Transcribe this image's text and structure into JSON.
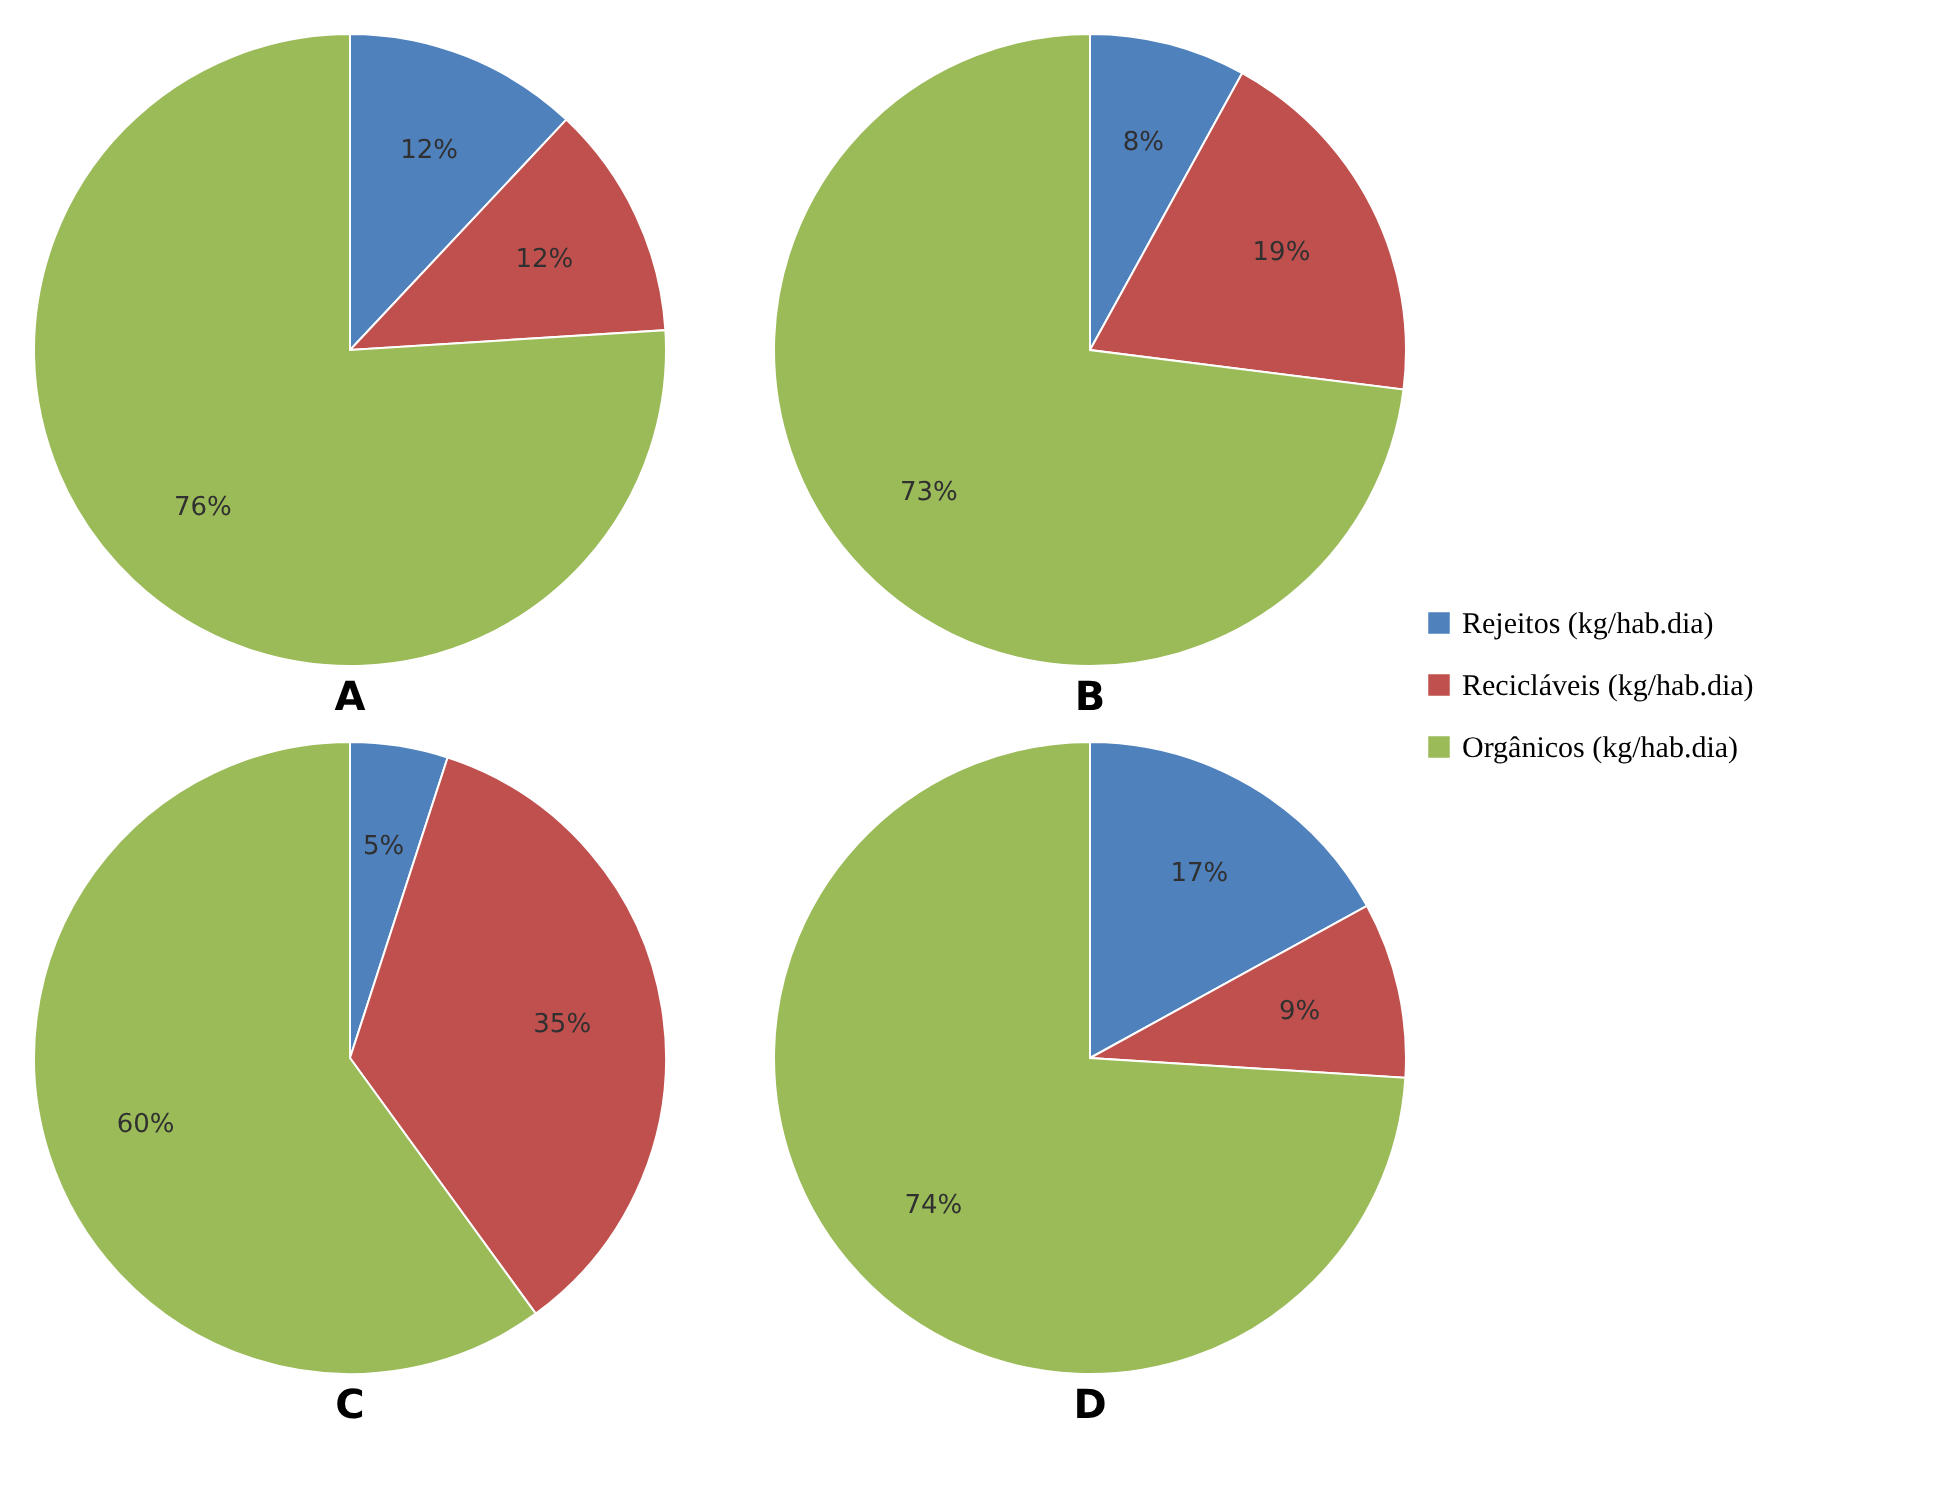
{
  "chart_data": [
    {
      "type": "pie",
      "title": "A",
      "categories": [
        "Rejeitos (kg/hab.dia)",
        "Recicláveis (kg/hab.dia)",
        "Orgânicos (kg/hab.dia)"
      ],
      "values": [
        12,
        12,
        76
      ],
      "colors": [
        "#4f81bd",
        "#c0504d",
        "#9bbb59"
      ],
      "value_labels": [
        "12%",
        "12%",
        "76%"
      ],
      "legend": "right"
    },
    {
      "type": "pie",
      "title": "B",
      "categories": [
        null,
        null,
        null
      ],
      "values": [
        8,
        19,
        73
      ],
      "colors": [
        "#4f81bd",
        "#c0504d",
        "#9bbb59"
      ],
      "value_labels": [
        "8%",
        "19%",
        "73%"
      ]
    },
    {
      "type": "pie",
      "title": "C",
      "categories": [
        null,
        null,
        null
      ],
      "values": [
        5,
        35,
        60
      ],
      "colors": [
        "#4f81bd",
        "#c0504d",
        "#9bbb59"
      ],
      "value_labels": [
        "5%",
        "35%",
        "60%"
      ]
    },
    {
      "type": "pie",
      "title": "D",
      "categories": [
        null,
        null,
        null
      ],
      "values": [
        17,
        9,
        74
      ],
      "colors": [
        "#4f81bd",
        "#c0504d",
        "#9bbb59"
      ],
      "value_labels": [
        "17%",
        "9%",
        "74%"
      ]
    }
  ]
}
